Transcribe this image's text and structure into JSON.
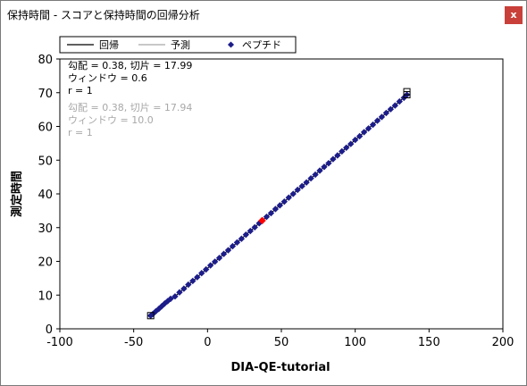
{
  "window": {
    "title": "保持時間 - スコアと保持時間の回帰分析",
    "close_label": "x"
  },
  "legend": {
    "items": [
      "回帰",
      "予測",
      "ペプチド"
    ]
  },
  "annotations": {
    "current": {
      "slope_intercept": "勾配 = 0.38, 切片 = 17.99",
      "window": "ウィンドウ = 0.6",
      "r": "r = 1"
    },
    "previous": {
      "slope_intercept": "勾配 = 0.38, 切片 = 17.94",
      "window": "ウィンドウ = 10.0",
      "r": "r = 1"
    }
  },
  "colors": {
    "points": "#1c1c8a",
    "highlight": "#ff0000",
    "prediction": "#b0b0b0",
    "regression": "#000000",
    "close_button": "#c9403a"
  },
  "chart_data": {
    "type": "scatter",
    "xlabel": "DIA-QE-tutorial",
    "ylabel": "測定時間",
    "xlim": [
      -100,
      200
    ],
    "ylim": [
      0,
      80
    ],
    "xticks": [
      -100,
      -50,
      0,
      50,
      100,
      150,
      200
    ],
    "yticks": [
      0,
      10,
      20,
      30,
      40,
      50,
      60,
      70,
      80
    ],
    "regression": {
      "slope": 0.38,
      "intercept": 17.99
    },
    "prediction": {
      "slope": 0.38,
      "intercept": 17.94
    },
    "series": [
      {
        "name": "ペプチド",
        "x": [
          -38.5,
          -37,
          -35,
          -33,
          -31,
          -29,
          -27,
          -25,
          -22,
          -19,
          -16,
          -13,
          -10,
          -7,
          -4,
          -1,
          2,
          5,
          8,
          11,
          14,
          17,
          20,
          23,
          26,
          29,
          32,
          35,
          40,
          43,
          46,
          49,
          52,
          55,
          58,
          61,
          64,
          67,
          70,
          73,
          76,
          79,
          82,
          85,
          88,
          91,
          94,
          97,
          100,
          103,
          106,
          109,
          112,
          115,
          118,
          121,
          124,
          127,
          130,
          133,
          135
        ],
        "y": [
          3.9,
          4.4,
          5.2,
          5.9,
          6.7,
          7.5,
          8.2,
          8.9,
          9.6,
          10.8,
          11.9,
          13.1,
          14.2,
          15.3,
          16.5,
          17.6,
          18.8,
          19.9,
          21.0,
          22.2,
          23.3,
          24.5,
          25.6,
          26.7,
          27.9,
          29.0,
          30.1,
          31.3,
          33.2,
          34.3,
          35.5,
          36.6,
          37.7,
          38.9,
          40.0,
          41.2,
          42.3,
          43.4,
          44.6,
          45.7,
          46.9,
          48.0,
          49.1,
          50.3,
          51.4,
          52.6,
          53.7,
          54.8,
          56.0,
          57.1,
          58.3,
          59.4,
          60.5,
          61.7,
          62.8,
          64.0,
          65.1,
          66.2,
          67.4,
          68.5,
          69.4
        ]
      }
    ],
    "highlight": {
      "x": [
        37
      ],
      "y": [
        32.1
      ]
    },
    "boxed_points": {
      "x": [
        -38.5,
        135,
        135
      ],
      "y": [
        3.9,
        69.4,
        70.3
      ]
    }
  }
}
